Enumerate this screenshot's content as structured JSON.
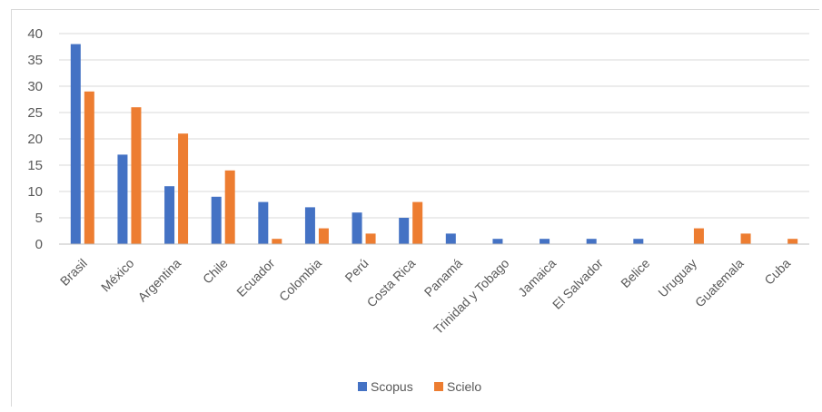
{
  "chart_data": {
    "type": "bar",
    "categories": [
      "Brasil",
      "México",
      "Argentina",
      "Chile",
      "Ecuador",
      "Colombia",
      "Perú",
      "Costa Rica",
      "Panamá",
      "Trinidad y Tobago",
      "Jamaica",
      "El Salvador",
      "Belice",
      "Uruguay",
      "Guatemala",
      "Cuba"
    ],
    "series": [
      {
        "name": "Scopus",
        "color": "#4472c4",
        "values": [
          38,
          17,
          11,
          9,
          8,
          7,
          6,
          5,
          2,
          1,
          1,
          1,
          1,
          0,
          0,
          0
        ]
      },
      {
        "name": "Scielo",
        "color": "#ed7d31",
        "values": [
          29,
          26,
          21,
          14,
          1,
          3,
          2,
          8,
          0,
          0,
          0,
          0,
          0,
          3,
          2,
          1
        ]
      }
    ],
    "yticks": [
      "0",
      "5",
      "10",
      "15",
      "20",
      "25",
      "30",
      "35",
      "40"
    ],
    "ylim": [
      0,
      40
    ],
    "grid": true,
    "legend_position": "bottom"
  }
}
